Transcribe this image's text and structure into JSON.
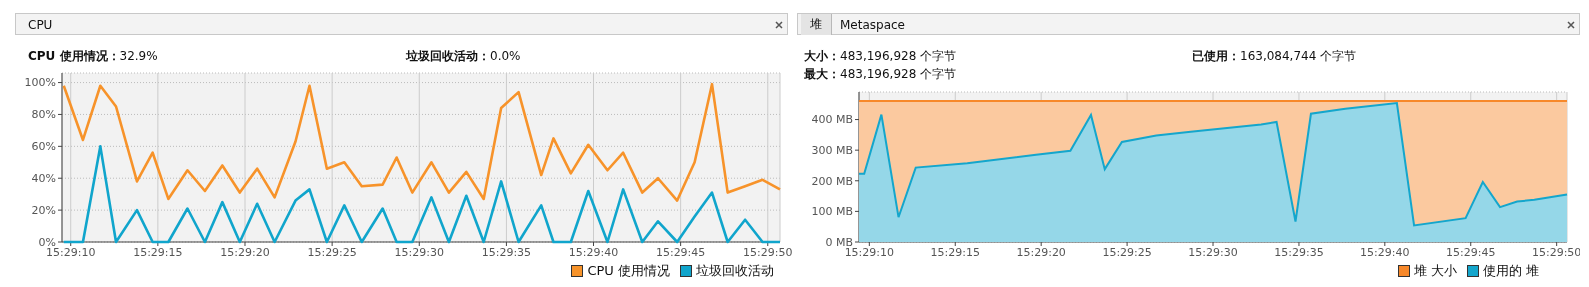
{
  "chart_data": [
    {
      "type": "line",
      "title": "CPU",
      "annotations": [
        "CPU 使用情况：32.9%",
        "垃圾回收活动：0.0%"
      ],
      "x": [
        15.486,
        15.486306,
        15.486583,
        15.486833,
        15.487167,
        15.487417,
        15.487667,
        15.487972,
        15.48825,
        15.488528,
        15.488806,
        15.489083,
        15.489361,
        15.489694,
        15.489917,
        15.490194,
        15.490472,
        15.49075,
        15.491083,
        15.491306,
        15.491556,
        15.491861,
        15.492139,
        15.492417,
        15.492694,
        15.492972,
        15.49325,
        15.493611,
        15.493806,
        15.494083,
        15.494361,
        15.494667,
        15.494917,
        15.495222,
        15.495472,
        15.495778,
        15.496056,
        15.496333,
        15.496583,
        15.496861,
        15.497139,
        15.497417
      ],
      "series": [
        {
          "name": "CPU 使用情况",
          "color": "#f7932a",
          "values": [
            98,
            64,
            98,
            85,
            38,
            56,
            27,
            45,
            32,
            48,
            31,
            46,
            28,
            63,
            98,
            46,
            50,
            35,
            36,
            53,
            31,
            50,
            31,
            44,
            27,
            84,
            94,
            42,
            65,
            43,
            61,
            45,
            56,
            31,
            40,
            26,
            50,
            99,
            31,
            35,
            39,
            33
          ]
        },
        {
          "name": "垃圾回收活动",
          "color": "#10a5cc",
          "values": [
            0,
            0,
            60,
            0,
            20,
            0,
            0,
            21,
            0,
            25,
            0,
            24,
            0,
            26,
            33,
            0,
            23,
            0,
            21,
            0,
            0,
            28,
            0,
            29,
            0,
            38,
            0,
            23,
            0,
            0,
            32,
            0,
            33,
            0,
            13,
            0,
            16,
            31,
            0,
            14,
            0,
            0
          ]
        }
      ],
      "xlim": [
        15.485972,
        15.497417
      ],
      "xticks": [
        {
          "value": 15.486111,
          "label": "15:29:10"
        },
        {
          "value": 15.4875,
          "label": "15:29:15"
        },
        {
          "value": 15.488889,
          "label": "15:29:20"
        },
        {
          "value": 15.490278,
          "label": "15:29:25"
        },
        {
          "value": 15.491667,
          "label": "15:29:30"
        },
        {
          "value": 15.493056,
          "label": "15:29:35"
        },
        {
          "value": 15.494444,
          "label": "15:29:40"
        },
        {
          "value": 15.495833,
          "label": "15:29:45"
        },
        {
          "value": 15.497222,
          "label": "15:29:50"
        }
      ],
      "ylim": [
        0,
        106
      ],
      "yticks": [
        {
          "value": 0,
          "label": "0%"
        },
        {
          "value": 20,
          "label": "20%"
        },
        {
          "value": 40,
          "label": "40%"
        },
        {
          "value": 60,
          "label": "60%"
        },
        {
          "value": 80,
          "label": "80%"
        },
        {
          "value": 100,
          "label": "100%"
        }
      ],
      "grid": true,
      "legend": "bottom right"
    },
    {
      "type": "area",
      "title": "堆",
      "annotations": [
        "Metaspace",
        "大小：483,196,928 个字节",
        "已使用：163,084,744 个字节",
        "最大：483,196,928 个字节"
      ],
      "series": [
        {
          "name": "堆 大小",
          "color": "#f7882a",
          "x": [
            15.485944,
            15.497389
          ],
          "values": [
            461,
            461
          ]
        },
        {
          "name": "使用的 堆",
          "color": "#14a6cc",
          "x": [
            15.485944,
            15.486028,
            15.486306,
            15.486583,
            15.486861,
            15.487694,
            15.488806,
            15.489361,
            15.489694,
            15.489917,
            15.490194,
            15.49075,
            15.491306,
            15.492444,
            15.492694,
            15.493,
            15.49325,
            15.493806,
            15.494639,
            15.494917,
            15.49575,
            15.496028,
            15.496306,
            15.496583,
            15.496861,
            15.497389
          ],
          "values": [
            223,
            223,
            416,
            81,
            243,
            257,
            285,
            298,
            415,
            238,
            327,
            348,
            360,
            384,
            392,
            67,
            419,
            435,
            454,
            54,
            78,
            196,
            114,
            132,
            138,
            155
          ]
        }
      ],
      "xlim": [
        15.485944,
        15.497389
      ],
      "xticks": [
        {
          "value": 15.486111,
          "label": "15:29:10"
        },
        {
          "value": 15.4875,
          "label": "15:29:15"
        },
        {
          "value": 15.488889,
          "label": "15:29:20"
        },
        {
          "value": 15.490278,
          "label": "15:29:25"
        },
        {
          "value": 15.491667,
          "label": "15:29:30"
        },
        {
          "value": 15.493056,
          "label": "15:29:35"
        },
        {
          "value": 15.494444,
          "label": "15:29:40"
        },
        {
          "value": 15.495833,
          "label": "15:29:45"
        },
        {
          "value": 15.497222,
          "label": "15:29:50"
        }
      ],
      "ylim": [
        0,
        490
      ],
      "yticks": [
        {
          "value": 0,
          "label": "0 MB"
        },
        {
          "value": 100,
          "label": "100 MB"
        },
        {
          "value": 200,
          "label": "200 MB"
        },
        {
          "value": 300,
          "label": "300 MB"
        },
        {
          "value": 400,
          "label": "400 MB"
        }
      ],
      "grid": true,
      "legend": "bottom right"
    }
  ]
}
